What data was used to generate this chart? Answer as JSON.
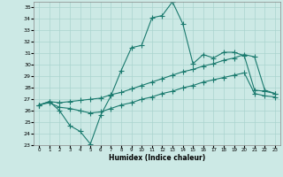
{
  "xlabel": "Humidex (Indice chaleur)",
  "xlim": [
    -0.5,
    23.5
  ],
  "ylim": [
    23,
    35.5
  ],
  "xticks": [
    0,
    1,
    2,
    3,
    4,
    5,
    6,
    7,
    8,
    9,
    10,
    11,
    12,
    13,
    14,
    15,
    16,
    17,
    18,
    19,
    20,
    21,
    22,
    23
  ],
  "yticks": [
    23,
    24,
    25,
    26,
    27,
    28,
    29,
    30,
    31,
    32,
    33,
    34,
    35
  ],
  "bg_color": "#cce9e5",
  "grid_color": "#aad4cf",
  "line_color": "#1a7a6e",
  "line1_x": [
    0,
    1,
    2,
    3,
    4,
    5,
    6,
    7,
    8,
    9,
    10,
    11,
    12,
    13,
    14,
    15,
    16,
    17,
    18,
    19,
    20,
    21,
    22,
    23
  ],
  "line1_y": [
    26.5,
    26.8,
    26.0,
    24.7,
    24.2,
    23.1,
    25.6,
    27.3,
    29.5,
    31.5,
    31.7,
    34.1,
    34.3,
    35.5,
    33.6,
    30.1,
    30.9,
    30.6,
    31.1,
    31.1,
    30.8,
    27.8,
    27.7,
    27.5
  ],
  "line2_x": [
    0,
    1,
    2,
    3,
    4,
    5,
    6,
    7,
    8,
    9,
    10,
    11,
    12,
    13,
    14,
    15,
    16,
    17,
    18,
    19,
    20,
    21,
    22,
    23
  ],
  "line2_y": [
    26.5,
    26.8,
    26.7,
    26.8,
    26.9,
    27.0,
    27.1,
    27.4,
    27.6,
    27.9,
    28.2,
    28.5,
    28.8,
    29.1,
    29.4,
    29.6,
    29.9,
    30.1,
    30.4,
    30.6,
    30.9,
    30.7,
    27.8,
    27.5
  ],
  "line3_x": [
    0,
    1,
    2,
    3,
    4,
    5,
    6,
    7,
    8,
    9,
    10,
    11,
    12,
    13,
    14,
    15,
    16,
    17,
    18,
    19,
    20,
    21,
    22,
    23
  ],
  "line3_y": [
    26.5,
    26.7,
    26.3,
    26.2,
    26.0,
    25.8,
    25.9,
    26.2,
    26.5,
    26.7,
    27.0,
    27.2,
    27.5,
    27.7,
    28.0,
    28.2,
    28.5,
    28.7,
    28.9,
    29.1,
    29.3,
    27.5,
    27.3,
    27.2
  ]
}
